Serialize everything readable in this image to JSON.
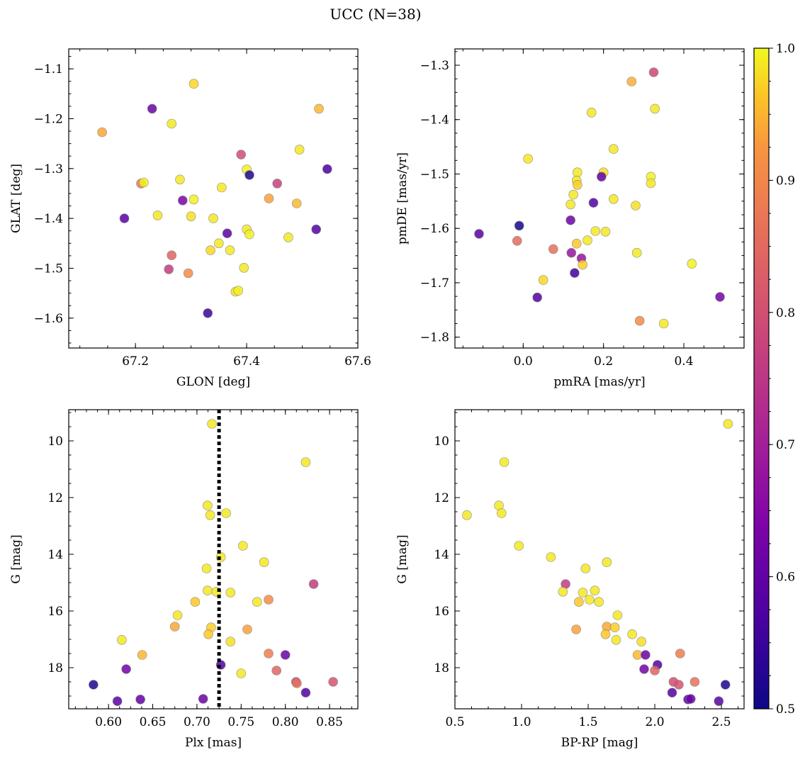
{
  "figure": {
    "suptitle": "UCC (N=38)"
  },
  "colorbar": {
    "cmap": "plasma",
    "range": [
      0.5,
      1.0
    ],
    "ticks": [
      0.5,
      0.6,
      0.7,
      0.8,
      0.9,
      1.0
    ],
    "tick_labels": [
      "0.5",
      "0.6",
      "0.7",
      "0.8",
      "0.9",
      "1.0"
    ]
  },
  "chart_data": [
    {
      "type": "scatter",
      "id": "glon-glat",
      "xlabel": "GLON [deg]",
      "ylabel": "GLAT [deg]",
      "xlim": [
        67.08,
        67.6
      ],
      "ylim": [
        -1.66,
        -1.06
      ],
      "x_invert": false,
      "y_invert": false,
      "xticks": [
        67.2,
        67.4,
        67.6
      ],
      "xtick_labels": [
        "67.2",
        "67.4",
        "67.6"
      ],
      "yticks": [
        -1.1,
        -1.2,
        -1.3,
        -1.4,
        -1.5,
        -1.6
      ],
      "ytick_labels": [
        "−1.1",
        "−1.2",
        "−1.3",
        "−1.4",
        "−1.5",
        "−1.6"
      ],
      "x": [
        67.14,
        67.23,
        67.265,
        67.305,
        67.53,
        67.39,
        67.495,
        67.21,
        67.215,
        67.28,
        67.305,
        67.355,
        67.4,
        67.405,
        67.455,
        67.44,
        67.49,
        67.545,
        67.18,
        67.24,
        67.285,
        67.3,
        67.34,
        67.4,
        67.405,
        67.365,
        67.35,
        67.335,
        67.37,
        67.475,
        67.525,
        67.265,
        67.26,
        67.295,
        67.395,
        67.38,
        67.385,
        67.33
      ],
      "y": [
        -1.227,
        -1.18,
        -1.21,
        -1.13,
        -1.18,
        -1.272,
        -1.262,
        -1.33,
        -1.328,
        -1.322,
        -1.362,
        -1.338,
        -1.302,
        -1.313,
        -1.33,
        -1.36,
        -1.37,
        -1.301,
        -1.4,
        -1.394,
        -1.364,
        -1.396,
        -1.4,
        -1.422,
        -1.432,
        -1.43,
        -1.45,
        -1.464,
        -1.464,
        -1.438,
        -1.422,
        -1.474,
        -1.502,
        -1.51,
        -1.499,
        -1.547,
        -1.545,
        -1.59
      ],
      "c": [
        0.9,
        0.6,
        0.98,
        0.96,
        0.92,
        0.76,
        0.98,
        0.84,
        0.99,
        0.98,
        0.99,
        0.98,
        0.99,
        0.52,
        0.74,
        0.89,
        0.92,
        0.56,
        0.58,
        0.98,
        0.62,
        0.97,
        0.98,
        0.98,
        0.99,
        0.58,
        0.98,
        0.96,
        0.98,
        0.98,
        0.57,
        0.8,
        0.73,
        0.86,
        0.98,
        0.97,
        0.99,
        0.55
      ]
    },
    {
      "type": "scatter",
      "id": "pmra-pmde",
      "xlabel": "pmRA [mas/yr]",
      "ylabel": "pmDE [mas/yr]",
      "xlim": [
        -0.17,
        0.55
      ],
      "ylim": [
        -1.82,
        -1.27
      ],
      "x_invert": false,
      "y_invert": false,
      "xticks": [
        0.0,
        0.2,
        0.4
      ],
      "xtick_labels": [
        "0.0",
        "0.2",
        "0.4"
      ],
      "yticks": [
        -1.3,
        -1.4,
        -1.5,
        -1.6,
        -1.7,
        -1.8
      ],
      "ytick_labels": [
        "−1.3",
        "−1.4",
        "−1.5",
        "−1.6",
        "−1.7",
        "−1.8"
      ],
      "x": [
        0.325,
        0.27,
        0.328,
        0.17,
        0.225,
        0.012,
        0.135,
        0.2,
        0.318,
        0.195,
        0.318,
        0.133,
        0.135,
        0.225,
        0.125,
        0.118,
        0.28,
        0.175,
        0.118,
        -0.11,
        -0.01,
        0.18,
        0.205,
        0.16,
        -0.015,
        0.133,
        0.075,
        0.12,
        0.283,
        0.145,
        0.148,
        0.128,
        0.05,
        0.035,
        0.42,
        0.49,
        0.29,
        0.35
      ],
      "y": [
        -1.313,
        -1.33,
        -1.38,
        -1.387,
        -1.454,
        -1.472,
        -1.497,
        -1.497,
        -1.505,
        -1.505,
        -1.517,
        -1.512,
        -1.52,
        -1.546,
        -1.538,
        -1.556,
        -1.558,
        -1.553,
        -1.585,
        -1.61,
        -1.595,
        -1.605,
        -1.606,
        -1.622,
        -1.623,
        -1.628,
        -1.638,
        -1.645,
        -1.645,
        -1.655,
        -1.667,
        -1.682,
        -1.695,
        -1.727,
        -1.665,
        -1.726,
        -1.77,
        -1.775
      ],
      "c": [
        0.75,
        0.91,
        0.98,
        0.98,
        0.98,
        0.98,
        0.98,
        0.97,
        0.99,
        0.59,
        0.98,
        0.98,
        0.95,
        0.98,
        0.98,
        0.98,
        0.97,
        0.57,
        0.6,
        0.58,
        0.51,
        0.98,
        0.98,
        0.98,
        0.81,
        0.94,
        0.82,
        0.66,
        0.98,
        0.66,
        0.95,
        0.55,
        0.96,
        0.57,
        0.99,
        0.61,
        0.86,
        0.98
      ]
    },
    {
      "type": "scatter",
      "id": "plx-g",
      "xlabel": "Plx [mas]",
      "ylabel": "G [mag]",
      "xlim": [
        0.555,
        0.882
      ],
      "ylim": [
        8.9,
        19.45
      ],
      "x_invert": false,
      "y_invert": true,
      "vline": 0.725,
      "xticks": [
        0.6,
        0.65,
        0.7,
        0.75,
        0.8,
        0.85
      ],
      "xtick_labels": [
        "0.60",
        "0.65",
        "0.70",
        "0.75",
        "0.80",
        "0.85"
      ],
      "yticks": [
        10,
        12,
        14,
        16,
        18
      ],
      "ytick_labels": [
        "10",
        "12",
        "14",
        "16",
        "18"
      ],
      "x": [
        0.717,
        0.823,
        0.712,
        0.733,
        0.715,
        0.752,
        0.727,
        0.776,
        0.711,
        0.832,
        0.712,
        0.722,
        0.738,
        0.698,
        0.768,
        0.781,
        0.678,
        0.615,
        0.675,
        0.716,
        0.757,
        0.713,
        0.738,
        0.638,
        0.781,
        0.8,
        0.727,
        0.62,
        0.79,
        0.812,
        0.813,
        0.854,
        0.583,
        0.823,
        0.61,
        0.636,
        0.707,
        0.75
      ],
      "y": [
        9.4,
        10.75,
        12.28,
        12.55,
        12.62,
        13.7,
        14.1,
        14.28,
        14.5,
        15.05,
        15.28,
        15.32,
        15.35,
        15.68,
        15.68,
        15.6,
        16.15,
        17.02,
        16.55,
        16.58,
        16.65,
        16.82,
        17.08,
        17.55,
        17.5,
        17.55,
        17.9,
        18.05,
        18.1,
        18.5,
        18.55,
        18.5,
        18.6,
        18.88,
        19.18,
        19.12,
        19.1,
        18.2
      ],
      "c": [
        0.98,
        0.98,
        0.98,
        0.98,
        0.98,
        0.98,
        0.98,
        0.98,
        0.98,
        0.73,
        0.98,
        0.98,
        0.98,
        0.94,
        0.98,
        0.86,
        0.98,
        0.98,
        0.9,
        0.95,
        0.89,
        0.94,
        0.97,
        0.92,
        0.84,
        0.6,
        0.57,
        0.61,
        0.8,
        0.76,
        0.82,
        0.77,
        0.52,
        0.57,
        0.58,
        0.59,
        0.6,
        0.98
      ]
    },
    {
      "type": "scatter",
      "id": "bprp-g",
      "xlabel": "BP-RP [mag]",
      "ylabel": "G [mag]",
      "xlim": [
        0.5,
        2.67
      ],
      "ylim": [
        8.9,
        19.45
      ],
      "x_invert": false,
      "y_invert": true,
      "xticks": [
        0.5,
        1.0,
        1.5,
        2.0,
        2.5
      ],
      "xtick_labels": [
        "0.5",
        "1.0",
        "1.5",
        "2.0",
        "2.5"
      ],
      "yticks": [
        10,
        12,
        14,
        16,
        18
      ],
      "ytick_labels": [
        "10",
        "12",
        "14",
        "16",
        "18"
      ],
      "x": [
        2.55,
        0.87,
        0.83,
        0.85,
        0.59,
        0.98,
        1.22,
        1.64,
        1.48,
        1.33,
        1.31,
        1.46,
        1.55,
        1.43,
        1.51,
        1.58,
        1.72,
        1.41,
        1.64,
        1.7,
        1.63,
        1.83,
        1.9,
        1.87,
        1.93,
        2.19,
        2.02,
        1.92,
        2.0,
        2.14,
        2.18,
        2.3,
        2.53,
        2.13,
        2.48,
        2.25,
        2.27,
        1.71
      ],
      "y": [
        9.4,
        10.75,
        12.28,
        12.55,
        12.62,
        13.7,
        14.1,
        14.28,
        14.5,
        15.05,
        15.32,
        15.35,
        15.28,
        15.68,
        15.6,
        15.68,
        16.15,
        16.65,
        16.55,
        16.58,
        16.82,
        16.82,
        17.08,
        17.55,
        17.55,
        17.5,
        17.9,
        18.05,
        18.1,
        18.5,
        18.6,
        18.5,
        18.6,
        18.88,
        19.18,
        19.12,
        19.1,
        17.02
      ],
      "c": [
        0.98,
        0.98,
        0.98,
        0.98,
        0.98,
        0.98,
        0.98,
        0.98,
        0.98,
        0.73,
        0.98,
        0.98,
        0.98,
        0.94,
        0.98,
        0.98,
        0.98,
        0.89,
        0.9,
        0.95,
        0.94,
        0.98,
        0.97,
        0.92,
        0.6,
        0.84,
        0.57,
        0.61,
        0.8,
        0.76,
        0.77,
        0.82,
        0.52,
        0.57,
        0.58,
        0.59,
        0.6,
        0.98
      ]
    }
  ]
}
